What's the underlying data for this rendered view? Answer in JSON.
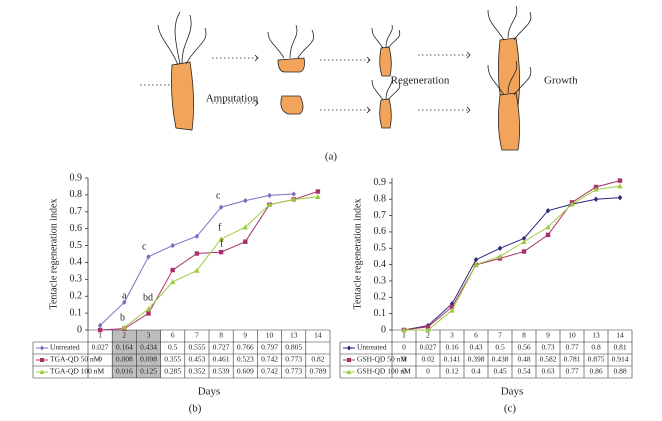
{
  "diagram": {
    "labels": [
      "Amputation",
      "Regeneration",
      "Growth"
    ],
    "panel_label": "(a)"
  },
  "chart_data": [
    {
      "type": "line",
      "panel_label": "(b)",
      "xlabel": "Days",
      "ylabel": "Tentacle regeneration index",
      "categories": [
        "1",
        "2",
        "3",
        "6",
        "7",
        "8",
        "9",
        "10",
        "13",
        "14"
      ],
      "series": [
        {
          "name": "Untreated",
          "color": "#7a6cc0",
          "marker": "diamond",
          "values": [
            0.027,
            0.164,
            0.434,
            0.5,
            0.555,
            0.727,
            0.766,
            0.797,
            0.805,
            null
          ]
        },
        {
          "name": "TGA-QD 50 nM",
          "color": "#a8306a",
          "marker": "square",
          "values": [
            0,
            0.008,
            0.098,
            0.355,
            0.453,
            0.461,
            0.523,
            0.742,
            0.773,
            0.82
          ]
        },
        {
          "name": "TGA-QD 100 nM",
          "color": "#9ccc3c",
          "marker": "triangle",
          "values": [
            null,
            0.016,
            0.125,
            0.285,
            0.352,
            0.539,
            0.609,
            0.742,
            0.773,
            0.789
          ]
        }
      ],
      "annotations": [
        "a",
        "b",
        "c",
        "bd",
        "c",
        "f",
        "f"
      ],
      "ylim": [
        0,
        0.9
      ],
      "yticks": [
        0,
        0.1,
        0.2,
        0.3,
        0.4,
        0.5,
        0.6,
        0.7,
        0.8,
        0.9
      ]
    },
    {
      "type": "line",
      "panel_label": "(c)",
      "xlabel": "Days",
      "ylabel": "Tentacle regeneration index",
      "categories": [
        "1",
        "2",
        "3",
        "6",
        "7",
        "8",
        "9",
        "10",
        "13",
        "14"
      ],
      "series": [
        {
          "name": "Untreated",
          "color": "#28287a",
          "marker": "diamond",
          "values": [
            0,
            0.027,
            0.16,
            0.43,
            0.5,
            0.56,
            0.73,
            0.77,
            0.8,
            0.81
          ]
        },
        {
          "name": "GSH-QD 50 nM",
          "color": "#a8306a",
          "marker": "square",
          "values": [
            0,
            0.02,
            0.141,
            0.398,
            0.438,
            0.48,
            0.582,
            0.781,
            0.875,
            0.914
          ]
        },
        {
          "name": "GSH-QD 100 nM",
          "color": "#9ccc3c",
          "marker": "triangle",
          "values": [
            0,
            0,
            0.12,
            0.4,
            0.45,
            0.54,
            0.63,
            0.77,
            0.86,
            0.88
          ]
        }
      ],
      "ylim": [
        0,
        0.93
      ],
      "yticks": [
        0,
        0.1,
        0.2,
        0.3,
        0.4,
        0.5,
        0.6,
        0.7,
        0.8,
        0.9
      ]
    }
  ]
}
